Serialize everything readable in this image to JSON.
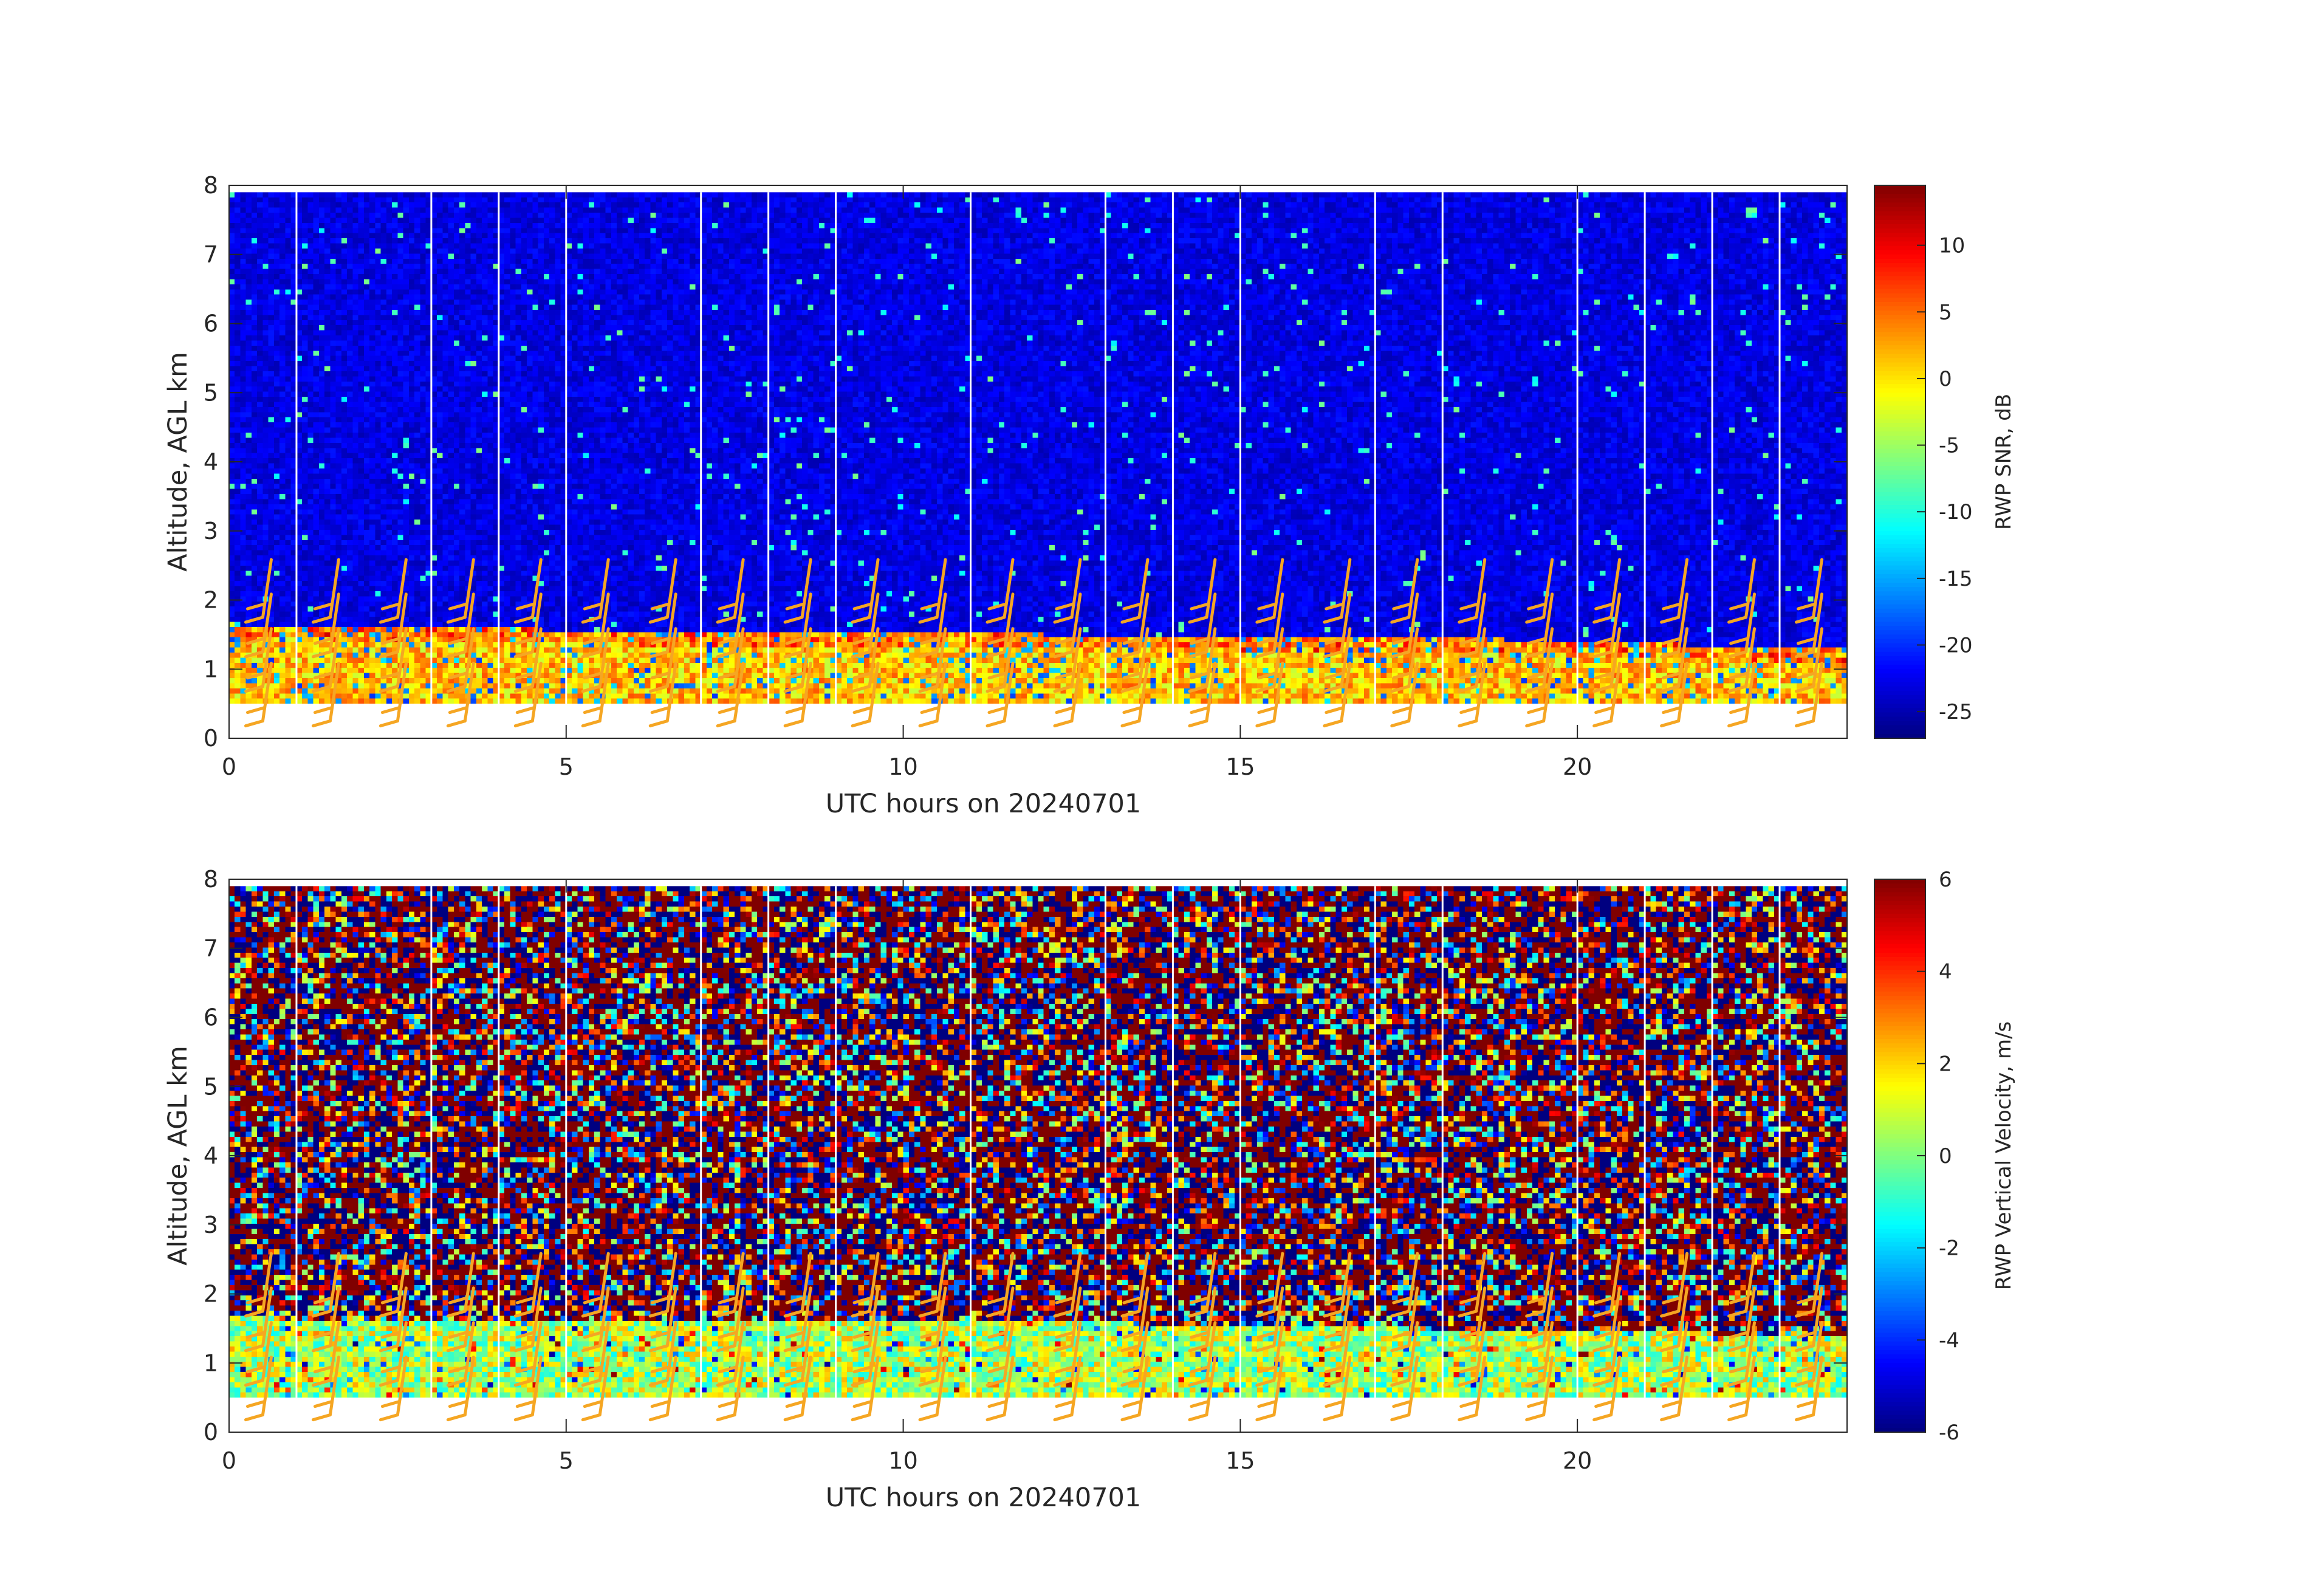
{
  "chart_data": [
    {
      "type": "heatmap",
      "title": "",
      "xlabel": "UTC hours on 20240701",
      "ylabel": "Altitude, AGL km",
      "xlim": [
        0,
        24
      ],
      "ylim": [
        0,
        8
      ],
      "xticks": [
        "0",
        "5",
        "10",
        "15",
        "20"
      ],
      "yticks": [
        "0",
        "1",
        "2",
        "3",
        "4",
        "5",
        "6",
        "7",
        "8"
      ],
      "data_altitude_range_km": [
        0.5,
        7.9
      ],
      "gap_hours": [
        1,
        3,
        4,
        5,
        7,
        8,
        9,
        11,
        13,
        14,
        15,
        17,
        18,
        20,
        21,
        22,
        23
      ],
      "colormap": "jet",
      "colorbar": {
        "label": "RWP SNR, dB",
        "range": [
          -27,
          14.5
        ],
        "ticks": [
          "10",
          "5",
          "0",
          "-5",
          "-10",
          "-15",
          "-20",
          "-25"
        ]
      },
      "field_description": {
        "background_db": -23,
        "boundary_layer_top_km": [
          [
            0,
            1.65
          ],
          [
            6,
            1.55
          ],
          [
            12,
            1.5
          ],
          [
            18,
            1.45
          ],
          [
            21.5,
            1.35
          ],
          [
            24,
            1.3
          ]
        ],
        "boundary_layer_db_range": [
          -12,
          12
        ]
      },
      "wind_barbs": {
        "color": "#f5a623",
        "times_hours": [
          0.5,
          1.5,
          2.5,
          3.5,
          4.5,
          5.5,
          6.5,
          7.5,
          8.5,
          9.5,
          10.5,
          11.5,
          12.5,
          13.5,
          14.5,
          15.5,
          16.5,
          17.5,
          18.5,
          19.5,
          20.5,
          21.5,
          22.5,
          23.5
        ],
        "altitudes_km": [
          0.25,
          0.75,
          1.25,
          1.75
        ]
      }
    },
    {
      "type": "heatmap",
      "title": "",
      "xlabel": "UTC hours on 20240701",
      "ylabel": "Altitude, AGL km",
      "xlim": [
        0,
        24
      ],
      "ylim": [
        0,
        8
      ],
      "xticks": [
        "0",
        "5",
        "10",
        "15",
        "20"
      ],
      "yticks": [
        "0",
        "1",
        "2",
        "3",
        "4",
        "5",
        "6",
        "7",
        "8"
      ],
      "data_altitude_range_km": [
        0.5,
        7.9
      ],
      "gap_hours": [
        1,
        3,
        4,
        5,
        7,
        8,
        9,
        11,
        13,
        14,
        15,
        17,
        18,
        20,
        21,
        22,
        23
      ],
      "colormap": "jet",
      "colorbar": {
        "label": "RWP Vertical Velocity, m/s",
        "range": [
          -6,
          6
        ],
        "ticks": [
          "6",
          "4",
          "2",
          "0",
          "-2",
          "-4",
          "-6"
        ]
      },
      "field_description": {
        "upper_noise_range_ms": [
          -6,
          6
        ],
        "boundary_layer_top_km": [
          [
            0,
            1.65
          ],
          [
            12,
            1.6
          ],
          [
            20,
            1.45
          ],
          [
            24,
            1.4
          ]
        ],
        "boundary_layer_ms_range": [
          -1.5,
          2.5
        ]
      },
      "wind_barbs": {
        "color": "#f5a623",
        "times_hours": [
          0.5,
          1.5,
          2.5,
          3.5,
          4.5,
          5.5,
          6.5,
          7.5,
          8.5,
          9.5,
          10.5,
          11.5,
          12.5,
          13.5,
          14.5,
          15.5,
          16.5,
          17.5,
          18.5,
          19.5,
          20.5,
          21.5,
          22.5,
          23.5
        ],
        "altitudes_km": [
          0.25,
          0.75,
          1.25,
          1.75
        ]
      }
    }
  ]
}
